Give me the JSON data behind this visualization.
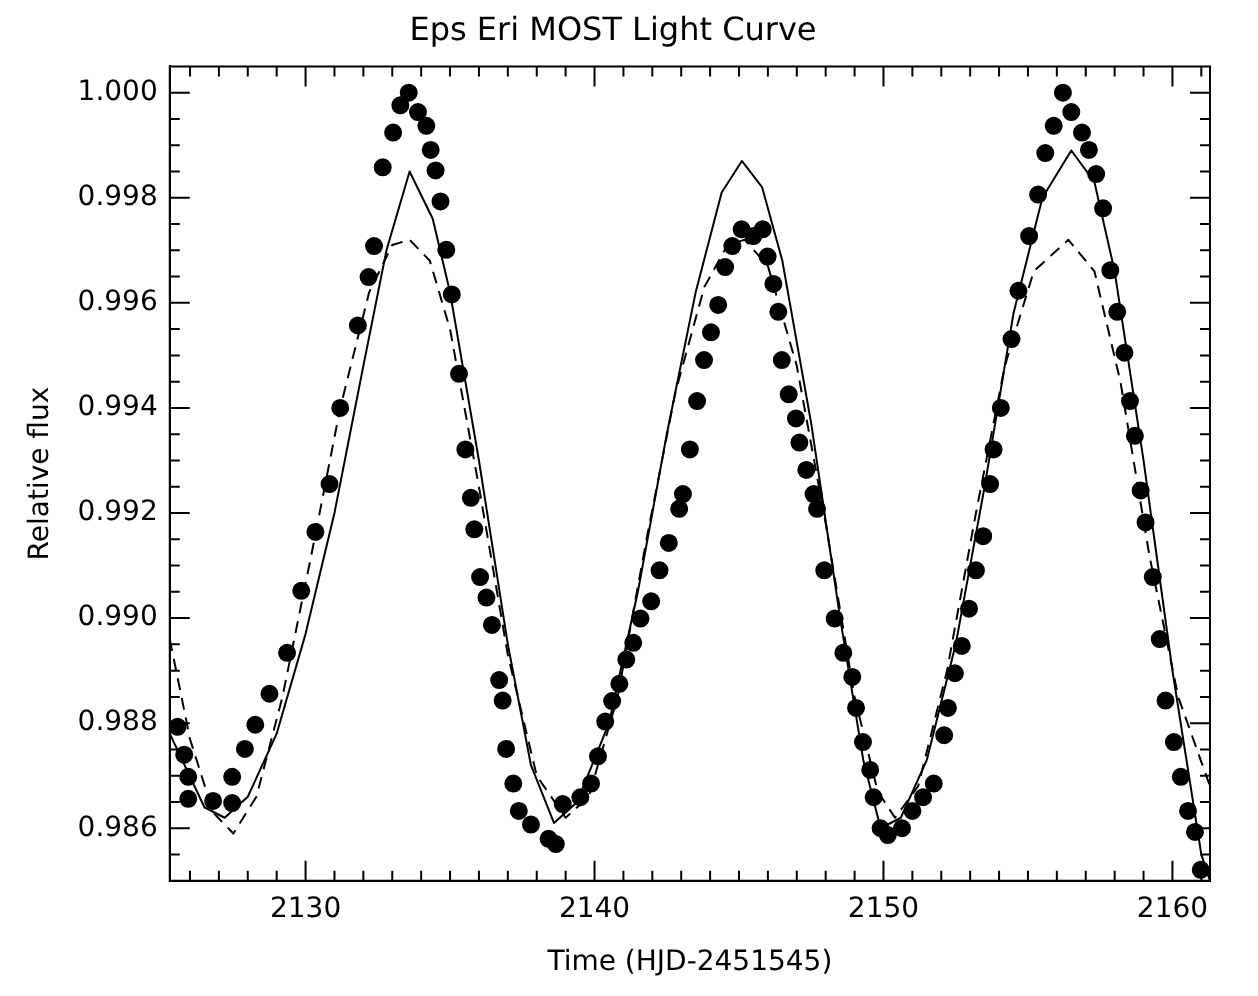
{
  "chart_data": {
    "type": "scatter",
    "title": "Eps Eri MOST Light Curve",
    "xlabel": "Time (HJD-2451545)",
    "ylabel": "Relative flux",
    "xlim": [
      2125.3,
      2161.3
    ],
    "ylim": [
      0.985,
      1.0005
    ],
    "xticks": [
      {
        "value": 2126,
        "label": null
      },
      {
        "value": 2127,
        "label": null
      },
      {
        "value": 2128,
        "label": null
      },
      {
        "value": 2129,
        "label": null
      },
      2130,
      {
        "value": 2131,
        "label": null
      },
      {
        "value": 2132,
        "label": null
      },
      {
        "value": 2133,
        "label": null
      },
      {
        "value": 2134,
        "label": null
      },
      {
        "value": 2135,
        "label": null
      },
      {
        "value": 2136,
        "label": null
      },
      {
        "value": 2137,
        "label": null
      },
      {
        "value": 2138,
        "label": null
      },
      {
        "value": 2139,
        "label": null
      },
      2140,
      {
        "value": 2141,
        "label": null
      },
      {
        "value": 2142,
        "label": null
      },
      {
        "value": 2143,
        "label": null
      },
      {
        "value": 2144,
        "label": null
      },
      {
        "value": 2145,
        "label": null
      },
      {
        "value": 2146,
        "label": null
      },
      {
        "value": 2147,
        "label": null
      },
      {
        "value": 2148,
        "label": null
      },
      {
        "value": 2149,
        "label": null
      },
      2150,
      {
        "value": 2151,
        "label": null
      },
      {
        "value": 2152,
        "label": null
      },
      {
        "value": 2153,
        "label": null
      },
      {
        "value": 2154,
        "label": null
      },
      {
        "value": 2155,
        "label": null
      },
      {
        "value": 2156,
        "label": null
      },
      {
        "value": 2157,
        "label": null
      },
      {
        "value": 2158,
        "label": null
      },
      {
        "value": 2159,
        "label": null
      },
      2160,
      {
        "value": 2161,
        "label": null
      }
    ],
    "yticks": [
      {
        "value": 0.9855,
        "label": null
      },
      {
        "value": 0.986,
        "label": "0.986"
      },
      {
        "value": 0.9865,
        "label": null
      },
      {
        "value": 0.987,
        "label": null
      },
      {
        "value": 0.9875,
        "label": null
      },
      {
        "value": 0.988,
        "label": "0.988"
      },
      {
        "value": 0.9885,
        "label": null
      },
      {
        "value": 0.989,
        "label": null
      },
      {
        "value": 0.9895,
        "label": null
      },
      {
        "value": 0.99,
        "label": "0.990"
      },
      {
        "value": 0.9905,
        "label": null
      },
      {
        "value": 0.991,
        "label": null
      },
      {
        "value": 0.9915,
        "label": null
      },
      {
        "value": 0.992,
        "label": "0.992"
      },
      {
        "value": 0.9925,
        "label": null
      },
      {
        "value": 0.993,
        "label": null
      },
      {
        "value": 0.9935,
        "label": null
      },
      {
        "value": 0.994,
        "label": "0.994"
      },
      {
        "value": 0.9945,
        "label": null
      },
      {
        "value": 0.995,
        "label": null
      },
      {
        "value": 0.9955,
        "label": null
      },
      {
        "value": 0.996,
        "label": "0.996"
      },
      {
        "value": 0.9965,
        "label": null
      },
      {
        "value": 0.997,
        "label": null
      },
      {
        "value": 0.9975,
        "label": null
      },
      {
        "value": 0.998,
        "label": "0.998"
      },
      {
        "value": 0.9985,
        "label": null
      },
      {
        "value": 0.999,
        "label": null
      },
      {
        "value": 0.9995,
        "label": null
      },
      {
        "value": 1.0,
        "label": "1.000"
      }
    ],
    "grid": false,
    "legend": false,
    "series": [
      {
        "type": "scatter",
        "color": "#000000",
        "marker": "circle",
        "x": [
          2125.57,
          2125.8,
          2125.94,
          2125.94,
          2126.8,
          2127.46,
          2127.46,
          2127.9,
          2128.26,
          2128.75,
          2129.36,
          2129.85,
          2130.34,
          2130.83,
          2131.2,
          2131.81,
          2132.18,
          2132.37,
          2132.67,
          2133.03,
          2133.28,
          2133.57,
          2133.89,
          2134.18,
          2134.33,
          2134.5,
          2134.67,
          2134.87,
          2135.06,
          2135.31,
          2135.53,
          2135.72,
          2135.84,
          2136.04,
          2136.26,
          2136.45,
          2136.7,
          2136.82,
          2136.94,
          2137.19,
          2137.38,
          2137.8,
          2138.41,
          2138.66,
          2138.9,
          2139.51,
          2139.88,
          2140.12,
          2140.37,
          2140.61,
          2140.86,
          2141.1,
          2141.34,
          2141.59,
          2141.96,
          2142.25,
          2142.57,
          2142.93,
          2143.06,
          2143.3,
          2143.55,
          2143.79,
          2144.03,
          2144.28,
          2144.52,
          2144.77,
          2145.09,
          2145.5,
          2145.82,
          2145.99,
          2146.19,
          2146.36,
          2146.48,
          2146.72,
          2146.97,
          2147.09,
          2147.33,
          2147.58,
          2147.7,
          2147.95,
          2148.31,
          2148.61,
          2148.92,
          2149.05,
          2149.29,
          2149.54,
          2149.66,
          2149.9,
          2150.15,
          2150.64,
          2151.0,
          2151.37,
          2151.74,
          2152.1,
          2152.23,
          2152.47,
          2152.71,
          2152.96,
          2153.2,
          2153.45,
          2153.69,
          2153.81,
          2154.06,
          2154.43,
          2154.67,
          2155.04,
          2155.35,
          2155.6,
          2155.89,
          2156.21,
          2156.5,
          2156.87,
          2157.11,
          2157.36,
          2157.6,
          2157.85,
          2158.09,
          2158.34,
          2158.53,
          2158.7,
          2158.9,
          2159.07,
          2159.32,
          2159.56,
          2159.76,
          2160.05,
          2160.29,
          2160.54,
          2160.78,
          2160.98
        ],
        "values": [
          0.98793,
          0.9874,
          0.98698,
          0.98656,
          0.98652,
          0.98648,
          0.98698,
          0.98751,
          0.98797,
          0.98856,
          0.98934,
          0.99052,
          0.99164,
          0.99255,
          0.994,
          0.99557,
          0.99649,
          0.99708,
          0.99858,
          0.99924,
          0.99976,
          1.0,
          0.99963,
          0.99937,
          0.99891,
          0.99852,
          0.99793,
          0.99701,
          0.99616,
          0.99465,
          0.99321,
          0.99229,
          0.99169,
          0.99078,
          0.99039,
          0.98987,
          0.98882,
          0.98843,
          0.98751,
          0.98685,
          0.98633,
          0.98607,
          0.9858,
          0.9857,
          0.98646,
          0.98659,
          0.98685,
          0.98737,
          0.98803,
          0.98842,
          0.98875,
          0.98921,
          0.98953,
          0.98999,
          0.99032,
          0.99091,
          0.99143,
          0.99208,
          0.99236,
          0.99321,
          0.99413,
          0.99491,
          0.99544,
          0.99596,
          0.99668,
          0.99708,
          0.9974,
          0.99727,
          0.9974,
          0.99688,
          0.99636,
          0.99583,
          0.99491,
          0.99426,
          0.9938,
          0.99334,
          0.99282,
          0.99236,
          0.99208,
          0.99091,
          0.98999,
          0.98934,
          0.98888,
          0.98829,
          0.98764,
          0.98711,
          0.98659,
          0.986,
          0.98587,
          0.986,
          0.98633,
          0.98659,
          0.98685,
          0.98777,
          0.98829,
          0.98895,
          0.98947,
          0.99018,
          0.99091,
          0.99156,
          0.99255,
          0.99321,
          0.994,
          0.99531,
          0.99623,
          0.99727,
          0.99806,
          0.99885,
          0.99937,
          1.0,
          0.99963,
          0.99924,
          0.99891,
          0.99845,
          0.9978,
          0.99662,
          0.99583,
          0.99505,
          0.99413,
          0.99347,
          0.99243,
          0.99182,
          0.99078,
          0.9896,
          0.98843,
          0.98764,
          0.98698,
          0.98633,
          0.98593,
          0.98521
        ]
      },
      {
        "type": "line",
        "color": "#000000",
        "line_style": "solid",
        "marker": "none",
        "x": [
          2125.3,
          2126.5,
          2127.2,
          2128.0,
          2129.0,
          2130.0,
          2131.0,
          2132.0,
          2132.8,
          2133.6,
          2134.4,
          2135.0,
          2136.0,
          2137.0,
          2137.8,
          2138.6,
          2139.4,
          2140.5,
          2141.5,
          2142.5,
          2143.5,
          2144.4,
          2145.1,
          2145.8,
          2146.5,
          2147.5,
          2148.5,
          2149.3,
          2149.9,
          2150.6,
          2151.5,
          2152.5,
          2153.5,
          2154.5,
          2155.5,
          2156.5,
          2157.3,
          2158.0,
          2159.0,
          2160.0,
          2161.0,
          2161.3
        ],
        "values": [
          0.9878,
          0.9864,
          0.9862,
          0.9866,
          0.9878,
          0.9897,
          0.992,
          0.9948,
          0.997,
          0.9985,
          0.9976,
          0.9962,
          0.993,
          0.9895,
          0.9872,
          0.9861,
          0.9865,
          0.988,
          0.9905,
          0.9935,
          0.9962,
          0.9981,
          0.9987,
          0.9982,
          0.9968,
          0.9937,
          0.99,
          0.9873,
          0.986,
          0.9862,
          0.9873,
          0.9895,
          0.9925,
          0.9958,
          0.998,
          0.9989,
          0.9983,
          0.9966,
          0.993,
          0.989,
          0.9855,
          0.985
        ]
      },
      {
        "type": "line",
        "color": "#000000",
        "line_style": "dashed",
        "marker": "none",
        "x": [
          2125.3,
          2126.0,
          2126.8,
          2127.5,
          2128.3,
          2129.2,
          2130.2,
          2131.2,
          2132.2,
          2133.0,
          2133.6,
          2134.3,
          2135.0,
          2136.0,
          2137.0,
          2138.0,
          2139.0,
          2139.8,
          2140.8,
          2141.8,
          2142.8,
          2143.8,
          2144.6,
          2145.2,
          2146.0,
          2147.0,
          2148.0,
          2149.0,
          2149.8,
          2150.4,
          2151.2,
          2152.2,
          2153.2,
          2154.2,
          2155.2,
          2156.4,
          2157.3,
          2158.2,
          2159.2,
          2160.2,
          2161.3
        ],
        "values": [
          0.9896,
          0.9877,
          0.9863,
          0.9859,
          0.9866,
          0.9885,
          0.9912,
          0.994,
          0.9962,
          0.9971,
          0.9972,
          0.9968,
          0.9955,
          0.9925,
          0.9893,
          0.987,
          0.9862,
          0.9866,
          0.9885,
          0.9915,
          0.9943,
          0.9963,
          0.9971,
          0.9972,
          0.9967,
          0.9948,
          0.9918,
          0.9885,
          0.9867,
          0.9862,
          0.9868,
          0.989,
          0.992,
          0.9948,
          0.9966,
          0.9972,
          0.9966,
          0.9945,
          0.9912,
          0.9885,
          0.9868
        ]
      }
    ]
  }
}
